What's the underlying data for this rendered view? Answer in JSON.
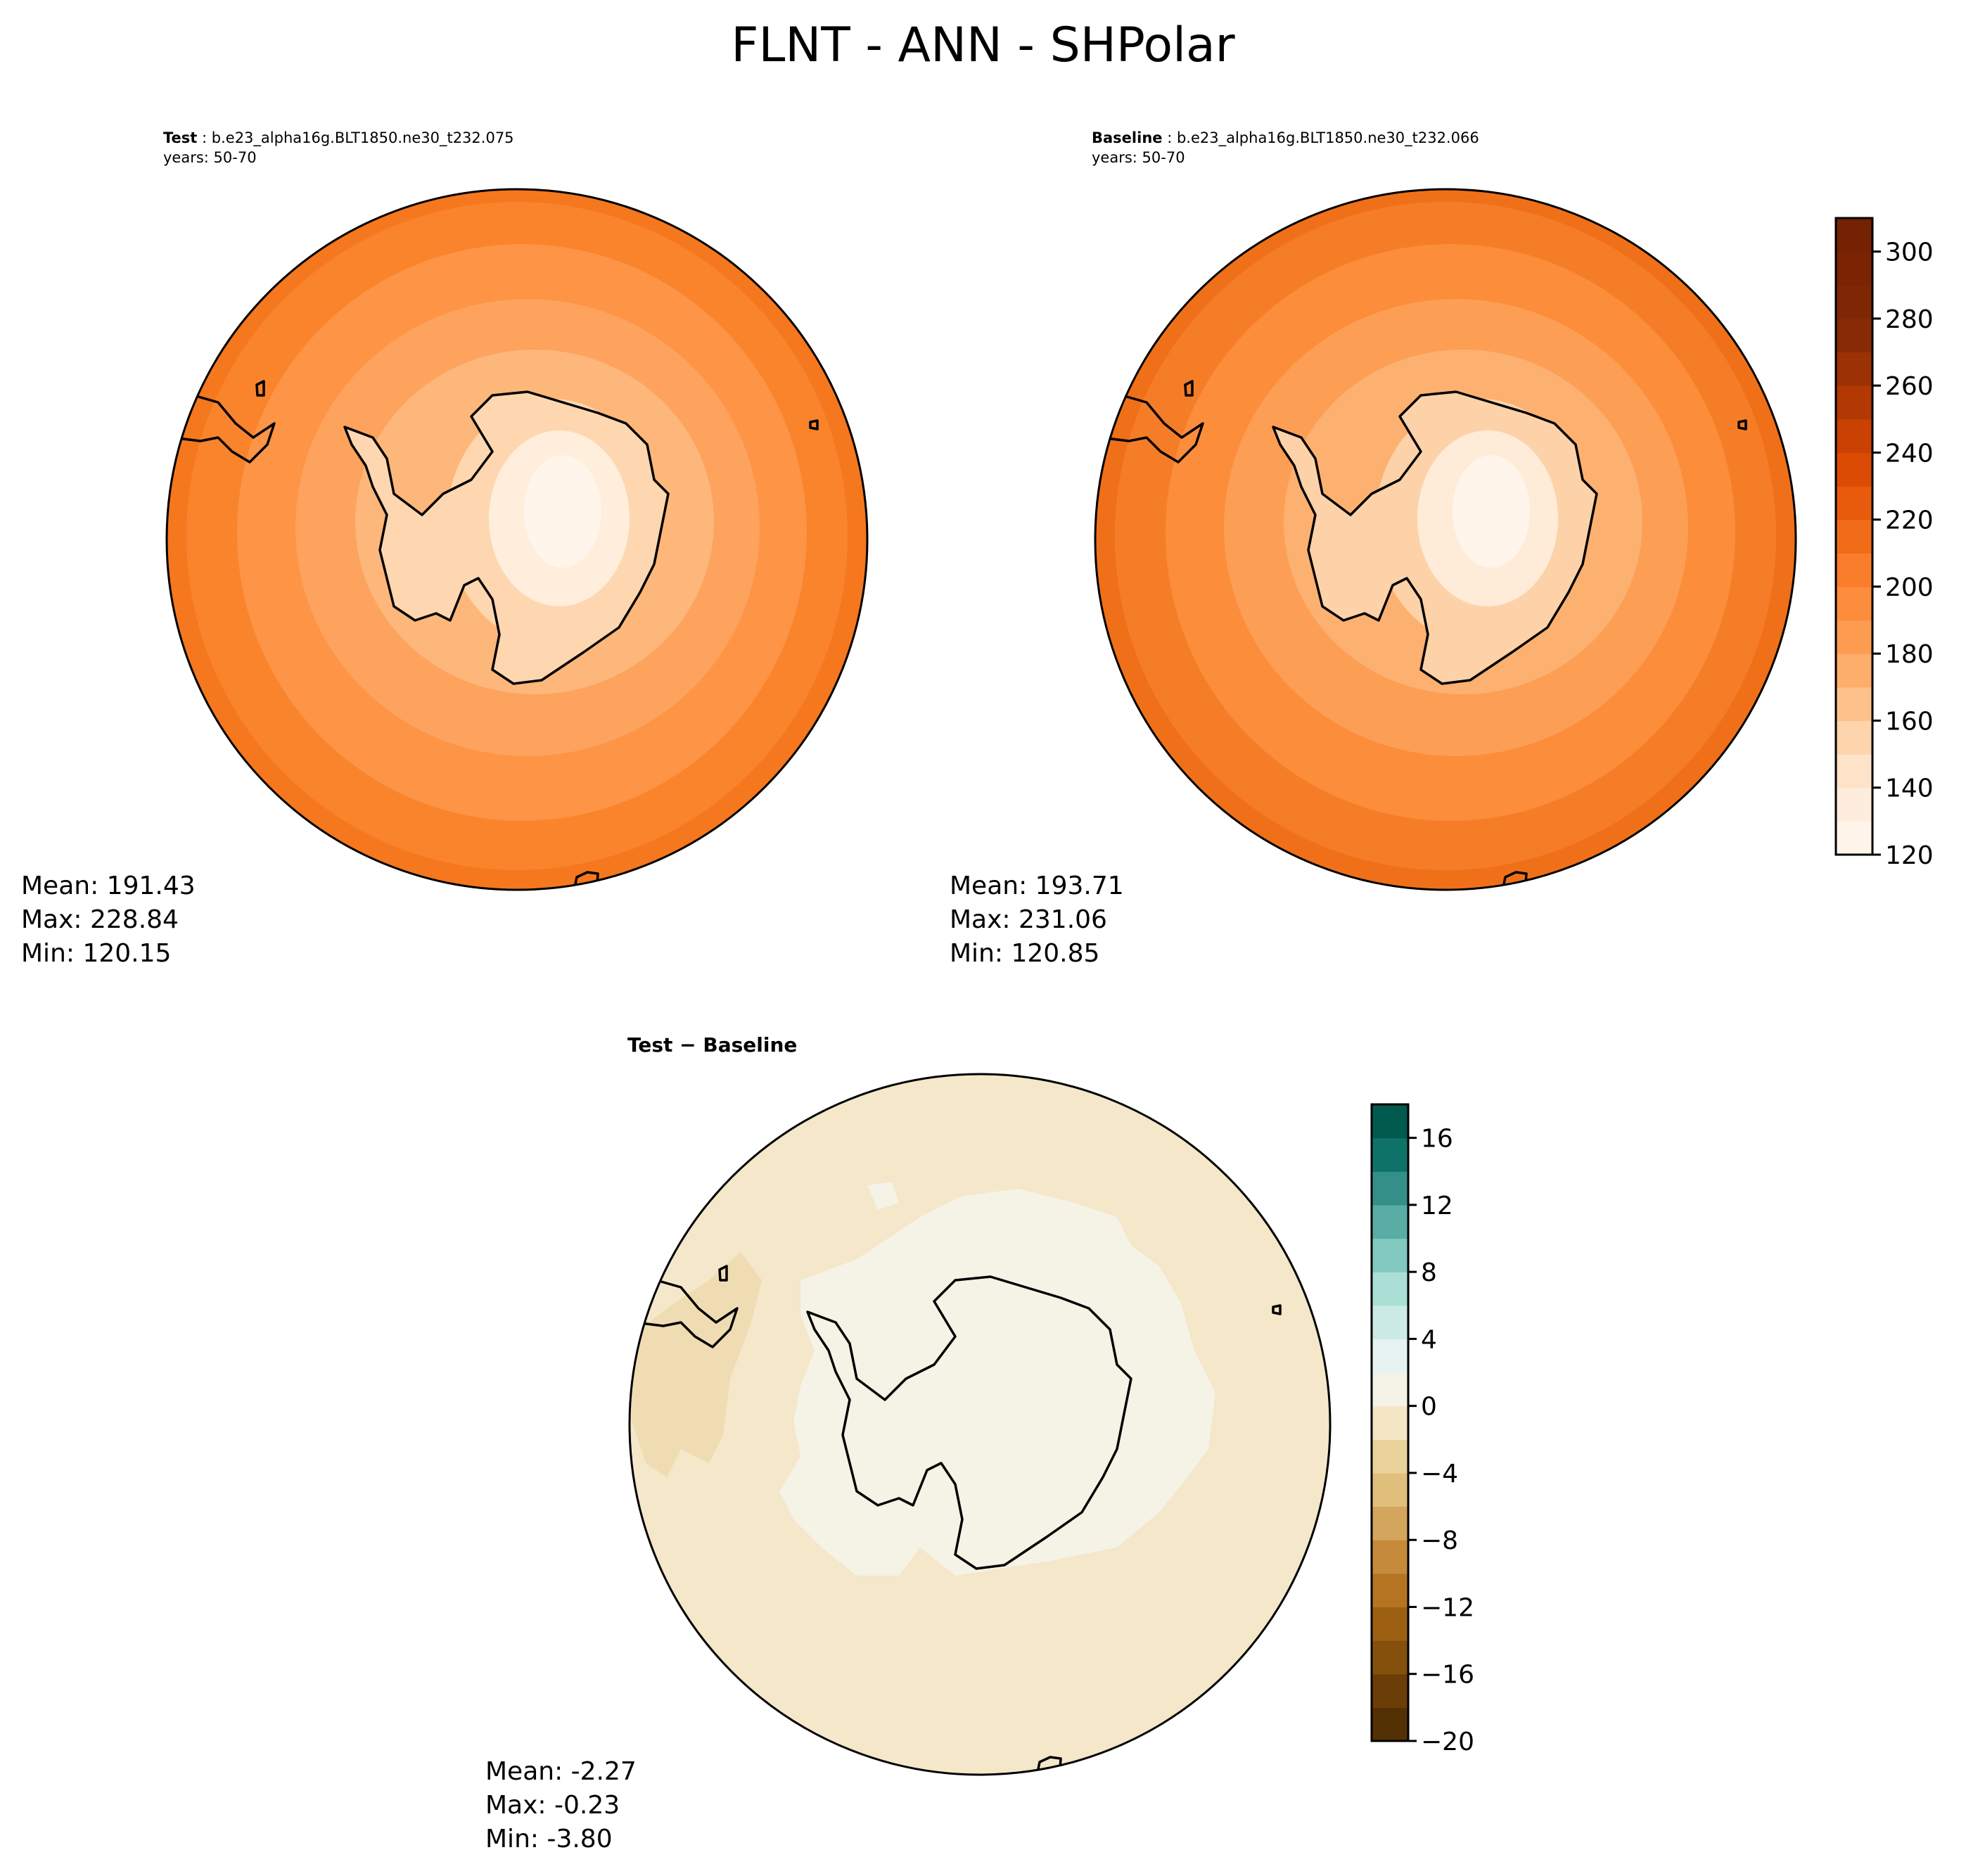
{
  "figure": {
    "title": "FLNT - ANN - SHPolar"
  },
  "test_panel": {
    "label": "Test",
    "case": "b.e23_alpha16g.BLT1850.ne30_t232.075",
    "years": "years: 50-70",
    "stats": {
      "mean": "Mean: 191.43",
      "max": "Max: 228.84",
      "min": "Min: 120.15"
    }
  },
  "baseline_panel": {
    "label": "Baseline",
    "case": "b.e23_alpha16g.BLT1850.ne30_t232.066",
    "years": "years: 50-70",
    "stats": {
      "mean": "Mean: 193.71",
      "max": "Max: 231.06",
      "min": "Min: 120.85"
    }
  },
  "diff_panel": {
    "title": "Test − Baseline",
    "stats": {
      "mean": "Mean: -2.27",
      "max": "Max: -0.23",
      "min": "Min: -3.80"
    }
  },
  "colorbar_main": {
    "min": 120,
    "max": 310,
    "step": 10,
    "ticks": [
      "120",
      "140",
      "160",
      "180",
      "200",
      "220",
      "240",
      "260",
      "280",
      "300"
    ],
    "colors": [
      "#fff5eb",
      "#feeddc",
      "#fee3c8",
      "#fdd4ab",
      "#fdc28c",
      "#fdae6b",
      "#fd9c50",
      "#fd8d3c",
      "#f97d2a",
      "#f16c18",
      "#e85a0c",
      "#dc4b04",
      "#c94103",
      "#b23903",
      "#9c3203",
      "#882b04",
      "#7f2704",
      "#7a2404",
      "#742104"
    ]
  },
  "colorbar_diff": {
    "min": -20,
    "max": 18,
    "step": 2,
    "ticks": [
      "−20",
      "−16",
      "−12",
      "−8",
      "−4",
      "0",
      "4",
      "8",
      "12",
      "16"
    ],
    "colors": [
      "#543005",
      "#6b3d07",
      "#84500b",
      "#9c5f12",
      "#b47421",
      "#c58a3a",
      "#d4a55c",
      "#e0bf7c",
      "#ead29b",
      "#f4e6c5",
      "#f5f2e8",
      "#e6f3f1",
      "#cdebe6",
      "#aadfd6",
      "#82c9bf",
      "#5aada4",
      "#338f87",
      "#0f7268",
      "#005a4e"
    ]
  },
  "map_fill": {
    "test": [
      "#f5771e",
      "#f9842c",
      "#fd9446",
      "#fda35e",
      "#fdb77a",
      "#fed7b0",
      "#feeedb",
      "#fff5eb"
    ],
    "baseline": [
      "#f07019",
      "#f67d27",
      "#fb8d3b",
      "#fd9e55",
      "#fdb170",
      "#fed2a8",
      "#feecd8",
      "#fff5eb"
    ],
    "diff_ocean": "#f4e7ca",
    "diff_land": "#f5f2e6",
    "diff_darker": "#efdcb2"
  }
}
